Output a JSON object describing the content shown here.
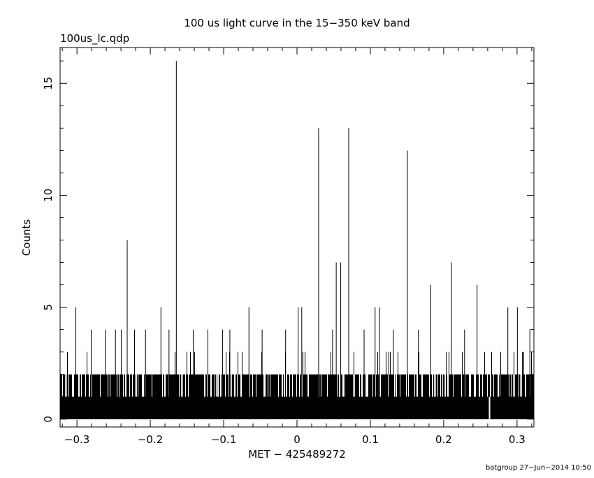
{
  "chart_data": {
    "type": "bar",
    "title": "100 us light curve in the 15−350 keV band",
    "subtitle": "100us_lc.qdp",
    "xlabel": "MET − 425489272",
    "ylabel": "Counts",
    "xlim": [
      -0.323,
      0.323
    ],
    "ylim": [
      -0.35,
      16.6
    ],
    "x_ticks": [
      -0.3,
      -0.2,
      -0.1,
      0,
      0.1,
      0.2,
      0.3
    ],
    "x_tick_labels": [
      "−0.3",
      "−0.2",
      "−0.1",
      "0",
      "0.1",
      "0.2",
      "0.3"
    ],
    "y_ticks": [
      0,
      5,
      10,
      15
    ],
    "y_tick_labels": [
      "0",
      "5",
      "10",
      "15"
    ],
    "bin_width_s": 0.0001,
    "baseline_note": "Most bins contain 0–2 counts, forming a dense band near zero; isolated spikes listed below.",
    "spikes": [
      {
        "x": -0.302,
        "counts": 5
      },
      {
        "x": -0.281,
        "counts": 4
      },
      {
        "x": -0.262,
        "counts": 4
      },
      {
        "x": -0.248,
        "counts": 4
      },
      {
        "x": -0.24,
        "counts": 4
      },
      {
        "x": -0.232,
        "counts": 8
      },
      {
        "x": -0.222,
        "counts": 4
      },
      {
        "x": -0.207,
        "counts": 4
      },
      {
        "x": -0.186,
        "counts": 5
      },
      {
        "x": -0.175,
        "counts": 4
      },
      {
        "x": -0.165,
        "counts": 16
      },
      {
        "x": -0.142,
        "counts": 4
      },
      {
        "x": -0.122,
        "counts": 4
      },
      {
        "x": -0.102,
        "counts": 4
      },
      {
        "x": -0.092,
        "counts": 4
      },
      {
        "x": -0.066,
        "counts": 5
      },
      {
        "x": -0.048,
        "counts": 4
      },
      {
        "x": -0.016,
        "counts": 4
      },
      {
        "x": 0.001,
        "counts": 5
      },
      {
        "x": 0.006,
        "counts": 5
      },
      {
        "x": 0.029,
        "counts": 13
      },
      {
        "x": 0.048,
        "counts": 4
      },
      {
        "x": 0.053,
        "counts": 7
      },
      {
        "x": 0.059,
        "counts": 7
      },
      {
        "x": 0.07,
        "counts": 13
      },
      {
        "x": 0.091,
        "counts": 4
      },
      {
        "x": 0.106,
        "counts": 5
      },
      {
        "x": 0.112,
        "counts": 5
      },
      {
        "x": 0.131,
        "counts": 4
      },
      {
        "x": 0.15,
        "counts": 12
      },
      {
        "x": 0.165,
        "counts": 4
      },
      {
        "x": 0.182,
        "counts": 6
      },
      {
        "x": 0.21,
        "counts": 7
      },
      {
        "x": 0.228,
        "counts": 4
      },
      {
        "x": 0.245,
        "counts": 6
      },
      {
        "x": 0.287,
        "counts": 5
      },
      {
        "x": 0.3,
        "counts": 5
      },
      {
        "x": 0.317,
        "counts": 4
      }
    ],
    "grid": false,
    "legend": "none"
  },
  "footer": {
    "text": "batgroup 27−Jun−2014 10:50"
  }
}
